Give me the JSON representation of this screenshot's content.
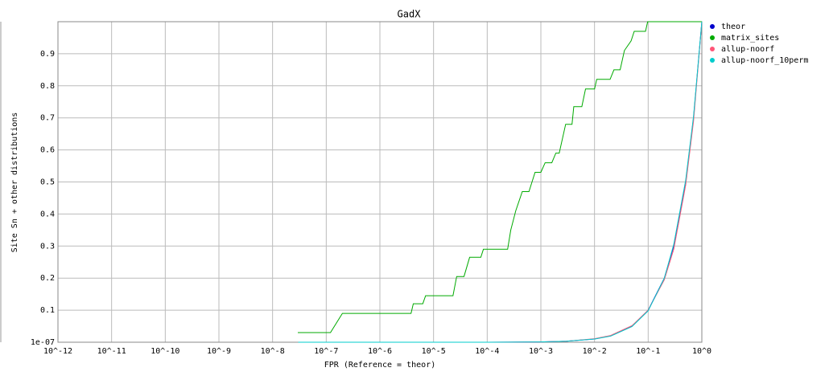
{
  "chart_data": {
    "type": "line",
    "title": "GadX",
    "x_label": "FPR (Reference = theor)",
    "y_label": "Site Sn + other distributions",
    "xscale": "log",
    "xlim": [
      1e-12,
      1
    ],
    "xticks": [
      {
        "value": 1e-12,
        "label": "10^-12"
      },
      {
        "value": 1e-11,
        "label": "10^-11"
      },
      {
        "value": 1e-10,
        "label": "10^-10"
      },
      {
        "value": 1e-09,
        "label": "10^-9"
      },
      {
        "value": 1e-08,
        "label": "10^-8"
      },
      {
        "value": 1e-07,
        "label": "10^-7"
      },
      {
        "value": 1e-06,
        "label": "10^-6"
      },
      {
        "value": 1e-05,
        "label": "10^-5"
      },
      {
        "value": 0.0001,
        "label": "10^-4"
      },
      {
        "value": 0.001,
        "label": "10^-3"
      },
      {
        "value": 0.01,
        "label": "10^-2"
      },
      {
        "value": 0.1,
        "label": "10^-1"
      },
      {
        "value": 1,
        "label": "10^0"
      }
    ],
    "ylim": [
      1e-07,
      1
    ],
    "yticks": [
      {
        "value": 1e-07,
        "label": "1e-07"
      },
      0.1,
      0.2,
      0.3,
      0.4,
      0.5,
      0.6,
      0.7,
      0.8,
      0.9
    ],
    "grid": true,
    "legend": "right",
    "series": [
      {
        "name": "theor",
        "color": "#0000cc",
        "x": [
          3e-08,
          1e-06,
          0.0001,
          0.001,
          0.003,
          0.01,
          0.02,
          0.05,
          0.1,
          0.2,
          0.3,
          0.5,
          0.7,
          1
        ],
        "values": [
          3e-08,
          1e-06,
          0.0001,
          0.001,
          0.003,
          0.01,
          0.02,
          0.05,
          0.1,
          0.2,
          0.3,
          0.5,
          0.7,
          1
        ]
      },
      {
        "name": "matrix_sites",
        "color": "#00aa00",
        "x": [
          2.95e-08,
          1.2e-07,
          2e-07,
          3.8e-06,
          4.2e-06,
          6.3e-06,
          7.1e-06,
          2.3e-05,
          2.7e-05,
          3.7e-05,
          4.7e-05,
          7.6e-05,
          8.5e-05,
          0.00024,
          0.000275,
          0.00034,
          0.00045,
          0.0006,
          0.00078,
          0.001,
          0.0012,
          0.0016,
          0.0019,
          0.0022,
          0.0029,
          0.0038,
          0.0041,
          0.0058,
          0.0068,
          0.01,
          0.011,
          0.0195,
          0.023,
          0.03,
          0.036,
          0.048,
          0.055,
          0.089,
          0.098,
          1
        ],
        "values": [
          0.03,
          0.03,
          0.09,
          0.09,
          0.12,
          0.12,
          0.145,
          0.145,
          0.205,
          0.205,
          0.265,
          0.265,
          0.29,
          0.29,
          0.35,
          0.41,
          0.47,
          0.47,
          0.53,
          0.53,
          0.56,
          0.56,
          0.59,
          0.59,
          0.68,
          0.68,
          0.735,
          0.735,
          0.79,
          0.79,
          0.82,
          0.82,
          0.85,
          0.85,
          0.91,
          0.94,
          0.97,
          0.97,
          1,
          1
        ]
      },
      {
        "name": "allup-noorf",
        "color": "#ff5577",
        "x": [
          3e-08,
          1e-06,
          0.0001,
          0.001,
          0.003,
          0.01,
          0.02,
          0.05,
          0.1,
          0.2,
          0.3,
          0.5,
          0.7,
          1
        ],
        "values": [
          3e-08,
          1e-06,
          0.0001,
          0.001,
          0.003,
          0.011,
          0.021,
          0.052,
          0.1,
          0.195,
          0.29,
          0.49,
          0.69,
          1
        ]
      },
      {
        "name": "allup-noorf_10perm",
        "color": "#00cccc",
        "x": [
          3e-08,
          1e-06,
          0.0001,
          0.001,
          0.003,
          0.01,
          0.02,
          0.05,
          0.1,
          0.2,
          0.3,
          0.5,
          0.7,
          1
        ],
        "values": [
          3e-08,
          1e-06,
          0.0001,
          0.001,
          0.003,
          0.01,
          0.019,
          0.049,
          0.098,
          0.2,
          0.305,
          0.505,
          0.705,
          1
        ]
      }
    ]
  }
}
